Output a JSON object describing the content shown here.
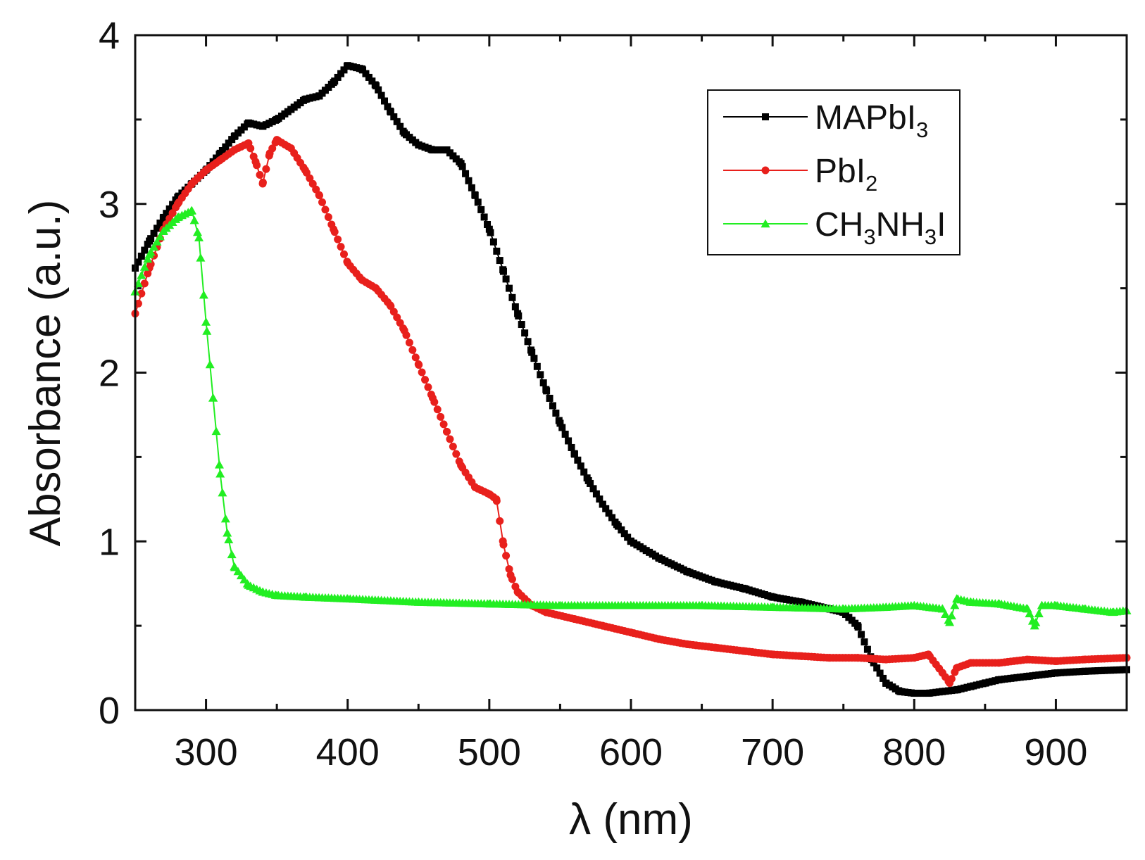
{
  "chart_data": {
    "type": "scatter",
    "title": "",
    "xlabel": "λ (nm)",
    "ylabel": "Absorbance (a.u.)",
    "xlim": [
      250,
      950
    ],
    "ylim": [
      0,
      4
    ],
    "x_ticks": [
      300,
      400,
      500,
      600,
      700,
      800,
      900
    ],
    "y_ticks": [
      0,
      1,
      2,
      3,
      4
    ],
    "grid": false,
    "legend_position": "top-right",
    "series": [
      {
        "name": "MAPbI3",
        "legend_parts": [
          {
            "t": "MAPbI",
            "sub": false
          },
          {
            "t": "3",
            "sub": true
          }
        ],
        "color": "#000000",
        "marker": "square",
        "points": [
          [
            250,
            2.62
          ],
          [
            260,
            2.78
          ],
          [
            270,
            2.92
          ],
          [
            280,
            3.04
          ],
          [
            290,
            3.12
          ],
          [
            300,
            3.2
          ],
          [
            310,
            3.3
          ],
          [
            320,
            3.4
          ],
          [
            330,
            3.48
          ],
          [
            340,
            3.46
          ],
          [
            350,
            3.5
          ],
          [
            360,
            3.56
          ],
          [
            370,
            3.62
          ],
          [
            380,
            3.64
          ],
          [
            390,
            3.72
          ],
          [
            400,
            3.82
          ],
          [
            410,
            3.8
          ],
          [
            420,
            3.7
          ],
          [
            430,
            3.55
          ],
          [
            440,
            3.42
          ],
          [
            450,
            3.35
          ],
          [
            460,
            3.32
          ],
          [
            470,
            3.32
          ],
          [
            480,
            3.24
          ],
          [
            490,
            3.05
          ],
          [
            500,
            2.85
          ],
          [
            510,
            2.6
          ],
          [
            520,
            2.35
          ],
          [
            530,
            2.12
          ],
          [
            540,
            1.9
          ],
          [
            550,
            1.7
          ],
          [
            560,
            1.52
          ],
          [
            570,
            1.36
          ],
          [
            580,
            1.22
          ],
          [
            590,
            1.1
          ],
          [
            600,
            1.0
          ],
          [
            620,
            0.9
          ],
          [
            640,
            0.82
          ],
          [
            660,
            0.76
          ],
          [
            680,
            0.72
          ],
          [
            700,
            0.67
          ],
          [
            720,
            0.64
          ],
          [
            740,
            0.6
          ],
          [
            750,
            0.58
          ],
          [
            760,
            0.5
          ],
          [
            770,
            0.3
          ],
          [
            780,
            0.16
          ],
          [
            790,
            0.11
          ],
          [
            800,
            0.1
          ],
          [
            810,
            0.1
          ],
          [
            820,
            0.11
          ],
          [
            830,
            0.12
          ],
          [
            840,
            0.14
          ],
          [
            850,
            0.16
          ],
          [
            860,
            0.18
          ],
          [
            880,
            0.2
          ],
          [
            900,
            0.22
          ],
          [
            920,
            0.23
          ],
          [
            950,
            0.24
          ]
        ]
      },
      {
        "name": "PbI2",
        "legend_parts": [
          {
            "t": "PbI",
            "sub": false
          },
          {
            "t": "2",
            "sub": true
          }
        ],
        "color": "#e8201c",
        "marker": "circle",
        "points": [
          [
            250,
            2.35
          ],
          [
            260,
            2.62
          ],
          [
            270,
            2.85
          ],
          [
            280,
            3.0
          ],
          [
            290,
            3.12
          ],
          [
            300,
            3.2
          ],
          [
            310,
            3.26
          ],
          [
            320,
            3.32
          ],
          [
            330,
            3.36
          ],
          [
            335,
            3.25
          ],
          [
            340,
            3.12
          ],
          [
            345,
            3.3
          ],
          [
            350,
            3.38
          ],
          [
            360,
            3.33
          ],
          [
            370,
            3.2
          ],
          [
            380,
            3.05
          ],
          [
            390,
            2.85
          ],
          [
            400,
            2.65
          ],
          [
            410,
            2.55
          ],
          [
            420,
            2.5
          ],
          [
            430,
            2.4
          ],
          [
            440,
            2.25
          ],
          [
            450,
            2.05
          ],
          [
            460,
            1.85
          ],
          [
            470,
            1.65
          ],
          [
            480,
            1.45
          ],
          [
            490,
            1.32
          ],
          [
            500,
            1.28
          ],
          [
            505,
            1.25
          ],
          [
            510,
            0.98
          ],
          [
            515,
            0.8
          ],
          [
            520,
            0.7
          ],
          [
            530,
            0.62
          ],
          [
            540,
            0.58
          ],
          [
            560,
            0.54
          ],
          [
            580,
            0.5
          ],
          [
            600,
            0.46
          ],
          [
            620,
            0.42
          ],
          [
            640,
            0.39
          ],
          [
            660,
            0.37
          ],
          [
            680,
            0.35
          ],
          [
            700,
            0.33
          ],
          [
            720,
            0.32
          ],
          [
            740,
            0.31
          ],
          [
            760,
            0.31
          ],
          [
            780,
            0.3
          ],
          [
            800,
            0.31
          ],
          [
            810,
            0.33
          ],
          [
            820,
            0.22
          ],
          [
            825,
            0.16
          ],
          [
            830,
            0.25
          ],
          [
            840,
            0.28
          ],
          [
            860,
            0.28
          ],
          [
            880,
            0.3
          ],
          [
            900,
            0.29
          ],
          [
            920,
            0.3
          ],
          [
            950,
            0.31
          ]
        ]
      },
      {
        "name": "CH3NH3I",
        "legend_parts": [
          {
            "t": "CH",
            "sub": false
          },
          {
            "t": "3",
            "sub": true
          },
          {
            "t": "NH",
            "sub": false
          },
          {
            "t": "3",
            "sub": true
          },
          {
            "t": "I",
            "sub": false
          }
        ],
        "color": "#22ee22",
        "marker": "triangle",
        "points": [
          [
            250,
            2.48
          ],
          [
            260,
            2.7
          ],
          [
            270,
            2.84
          ],
          [
            280,
            2.92
          ],
          [
            290,
            2.96
          ],
          [
            295,
            2.8
          ],
          [
            300,
            2.3
          ],
          [
            305,
            1.85
          ],
          [
            310,
            1.4
          ],
          [
            315,
            1.05
          ],
          [
            320,
            0.85
          ],
          [
            330,
            0.74
          ],
          [
            340,
            0.7
          ],
          [
            350,
            0.68
          ],
          [
            370,
            0.67
          ],
          [
            400,
            0.66
          ],
          [
            450,
            0.64
          ],
          [
            500,
            0.63
          ],
          [
            550,
            0.62
          ],
          [
            600,
            0.62
          ],
          [
            650,
            0.62
          ],
          [
            700,
            0.61
          ],
          [
            750,
            0.6
          ],
          [
            780,
            0.61
          ],
          [
            800,
            0.62
          ],
          [
            820,
            0.6
          ],
          [
            825,
            0.52
          ],
          [
            830,
            0.66
          ],
          [
            840,
            0.64
          ],
          [
            860,
            0.63
          ],
          [
            880,
            0.6
          ],
          [
            885,
            0.5
          ],
          [
            890,
            0.62
          ],
          [
            900,
            0.62
          ],
          [
            920,
            0.6
          ],
          [
            940,
            0.58
          ],
          [
            950,
            0.59
          ]
        ]
      }
    ]
  }
}
